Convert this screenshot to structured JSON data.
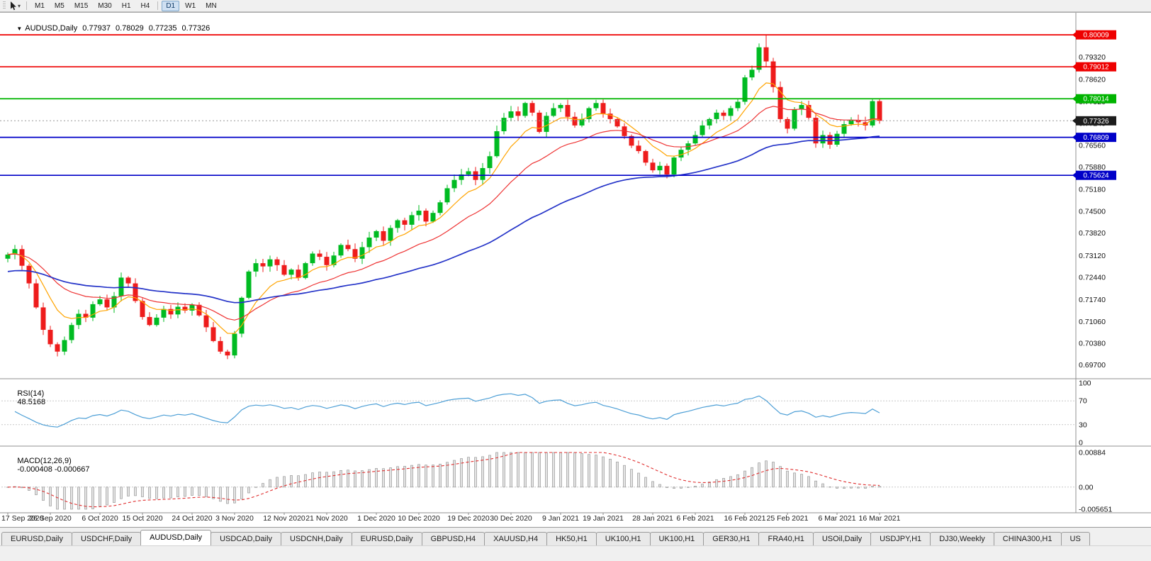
{
  "titlebar": {
    "collapse_icon": "▼",
    "symbol": "AUDUSD,Daily",
    "open": "0.77937",
    "high": "0.78029",
    "low": "0.77235",
    "close": "0.77326"
  },
  "toolbar": {
    "timeframes": [
      "M1",
      "M5",
      "M15",
      "M30",
      "H1",
      "H4",
      "D1",
      "W1",
      "MN"
    ],
    "active": "D1"
  },
  "chart_data": {
    "type": "candlestick",
    "symbol": "AUDUSD",
    "timeframe": "Daily",
    "price_range": [
      0.6945,
      0.803
    ],
    "first_open": 0.7302,
    "closes": [
      0.7315,
      0.7332,
      0.728,
      0.7225,
      0.715,
      0.708,
      0.7035,
      0.7012,
      0.7048,
      0.7095,
      0.713,
      0.7118,
      0.716,
      0.7175,
      0.715,
      0.7185,
      0.7243,
      0.7225,
      0.717,
      0.712,
      0.7095,
      0.7118,
      0.7145,
      0.7128,
      0.7152,
      0.714,
      0.7158,
      0.7125,
      0.7088,
      0.7045,
      0.7012,
      0.7,
      0.7068,
      0.718,
      0.7262,
      0.7288,
      0.7278,
      0.73,
      0.7282,
      0.7252,
      0.7268,
      0.7242,
      0.7288,
      0.7318,
      0.7308,
      0.7282,
      0.7312,
      0.7345,
      0.7332,
      0.7302,
      0.7338,
      0.7368,
      0.7388,
      0.7358,
      0.7398,
      0.7422,
      0.7408,
      0.7438,
      0.7452,
      0.7418,
      0.7445,
      0.7478,
      0.7522,
      0.7548,
      0.7565,
      0.7575,
      0.7548,
      0.7585,
      0.7622,
      0.77,
      0.7742,
      0.7762,
      0.7748,
      0.7788,
      0.7758,
      0.7698,
      0.7748,
      0.7772,
      0.7782,
      0.7745,
      0.7718,
      0.7738,
      0.7772,
      0.7788,
      0.7755,
      0.7738,
      0.7715,
      0.7685,
      0.7655,
      0.7638,
      0.7602,
      0.7578,
      0.7592,
      0.7565,
      0.7618,
      0.7642,
      0.7662,
      0.7688,
      0.7718,
      0.7738,
      0.7758,
      0.7748,
      0.7772,
      0.7792,
      0.7868,
      0.7892,
      0.7962,
      0.7918,
      0.7838,
      0.7738,
      0.7708,
      0.7768,
      0.7782,
      0.7742,
      0.7662,
      0.7688,
      0.7658,
      0.7692,
      0.7722,
      0.7735,
      0.7728,
      0.7718,
      0.7794,
      0.77326
    ],
    "wick_overrides": [
      {
        "i": 32,
        "l": 0.6991
      },
      {
        "i": 107,
        "h": 0.8001
      },
      {
        "i": 122,
        "h": 0.7802,
        "l": 0.7712
      },
      {
        "i": 123,
        "h": 0.78029,
        "l": 0.77235
      }
    ],
    "up_color": "#00BB22",
    "down_color": "#EE1C1C",
    "moving_averages": [
      {
        "name": "ma-fast-orange",
        "period": 8,
        "color": "#FFA400",
        "seed": null
      },
      {
        "name": "ma-mid-red",
        "period": 20,
        "color": "#EE3333",
        "seed": null
      },
      {
        "name": "ma-slow-blue",
        "period": 55,
        "color": "#2433C8",
        "seed": 0.726
      }
    ],
    "levels": [
      {
        "price": 0.80009,
        "label": "0.80009",
        "color": "#EE0000"
      },
      {
        "price": 0.79012,
        "label": "0.79012",
        "color": "#EE0000"
      },
      {
        "price": 0.78014,
        "label": "0.78014",
        "color": "#00B400"
      },
      {
        "price": 0.76809,
        "label": "0.76809",
        "color": "#0000C8"
      },
      {
        "price": 0.75624,
        "label": "0.75624",
        "color": "#0000C8"
      }
    ],
    "current_price": {
      "value": 0.77326,
      "label": "0.77326",
      "color": "#1c1c1c"
    },
    "price_ticks": [
      0.7932,
      0.7862,
      0.7792,
      0.7724,
      0.7656,
      0.7588,
      0.7518,
      0.745,
      0.7382,
      0.7312,
      0.7244,
      0.7174,
      0.7106,
      0.7038,
      0.697
    ],
    "date_ticks": [
      "17 Sep 2020",
      "26 Sep 2020",
      "6 Oct 2020",
      "15 Oct 2020",
      "24 Oct 2020",
      "3 Nov 2020",
      "12 Nov 2020",
      "21 Nov 2020",
      "1 Dec 2020",
      "10 Dec 2020",
      "19 Dec 2020",
      "30 Dec 2020",
      "9 Jan 2021",
      "19 Jan 2021",
      "28 Jan 2021",
      "6 Feb 2021",
      "16 Feb 2021",
      "25 Feb 2021",
      "6 Mar 2021",
      "16 Mar 2021"
    ],
    "indicators": {
      "rsi": {
        "label": "RSI(14)",
        "value_text": "48.5168",
        "period": 14,
        "color": "#4D9FD6",
        "levels": [
          70,
          30
        ],
        "axis_values": [
          100,
          70,
          30,
          0
        ],
        "axis_labels": [
          "100",
          "70",
          "30",
          "0"
        ],
        "range": [
          0,
          100
        ]
      },
      "macd": {
        "label": "MACD(12,26,9)",
        "values_text": "-0.000408 -0.000667",
        "fast": 12,
        "slow": 26,
        "signal": 9,
        "bar_color": "#e2e2e2",
        "bar_stroke": "#9a9a9a",
        "signal_color": "#E03030",
        "range": [
          -0.005651,
          0.00884
        ],
        "axis_labels": [
          "0.00884",
          "0.00",
          "-0.005651"
        ]
      }
    }
  },
  "tabs": {
    "items": [
      {
        "label": "EURUSD,Daily"
      },
      {
        "label": "USDCHF,Daily"
      },
      {
        "label": "AUDUSD,Daily",
        "active": true
      },
      {
        "label": "USDCAD,Daily"
      },
      {
        "label": "USDCNH,Daily"
      },
      {
        "label": "EURUSD,Daily"
      },
      {
        "label": "GBPUSD,H4"
      },
      {
        "label": "XAUUSD,H4"
      },
      {
        "label": "HK50,H1"
      },
      {
        "label": "UK100,H1"
      },
      {
        "label": "UK100,H1"
      },
      {
        "label": "GER30,H1"
      },
      {
        "label": "FRA40,H1"
      },
      {
        "label": "USOil,Daily"
      },
      {
        "label": "USDJPY,H1"
      },
      {
        "label": "DJ30,Weekly"
      },
      {
        "label": "CHINA300,H1"
      },
      {
        "label": "US"
      }
    ]
  }
}
